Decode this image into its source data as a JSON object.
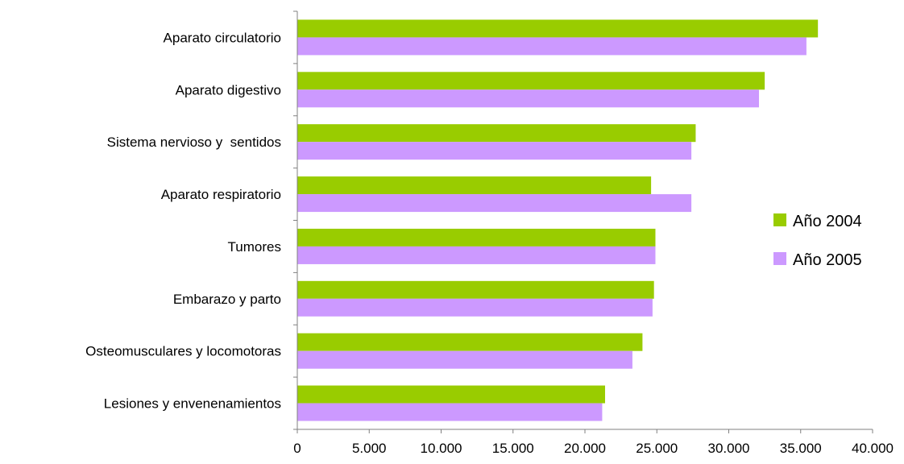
{
  "chart_data": {
    "type": "bar",
    "orientation": "horizontal",
    "categories": [
      "Aparato circulatorio",
      "Aparato digestivo",
      "Sistema nervioso y  sentidos",
      "Aparato respiratorio",
      "Tumores",
      "Embarazo y parto",
      "Osteomusculares y locomotoras",
      "Lesiones y envenenamientos"
    ],
    "series": [
      {
        "name": "Año 2004",
        "color": "#99cc00",
        "values": [
          36200,
          32500,
          27700,
          24600,
          24900,
          24800,
          24000,
          21400
        ]
      },
      {
        "name": "Año 2005",
        "color": "#cc99ff",
        "values": [
          35400,
          32100,
          27400,
          27400,
          24900,
          24700,
          23300,
          21200
        ]
      }
    ],
    "xlim": [
      0,
      40000
    ],
    "xticks": [
      0,
      5000,
      10000,
      15000,
      20000,
      25000,
      30000,
      35000,
      40000
    ],
    "xtick_labels": [
      "0",
      "5.000",
      "10.000",
      "15.000",
      "20.000",
      "25.000",
      "30.000",
      "35.000",
      "40.000"
    ],
    "grid": false,
    "legend_position": "right"
  }
}
